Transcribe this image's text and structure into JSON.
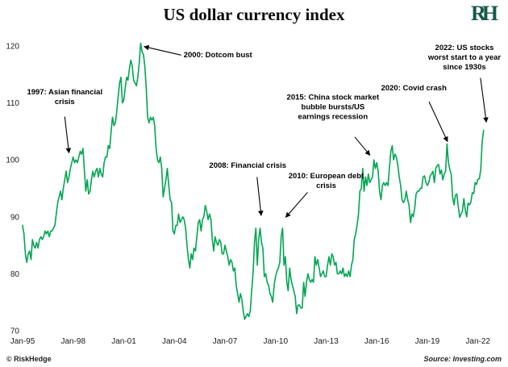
{
  "header": {
    "title": "US dollar currency index",
    "logo": "RH"
  },
  "footer": {
    "left": "© RiskHedge",
    "right": "Source: Investing.com"
  },
  "chart_data": {
    "type": "line",
    "title": "US dollar currency index",
    "series_name": "US dollar currency index (DXY)",
    "line_color": "#00a651",
    "background": "#ffffff",
    "grid": false,
    "legend": "none",
    "xlabel": "",
    "ylabel": "",
    "ylim": [
      70,
      120
    ],
    "yticks": [
      70,
      80,
      90,
      100,
      110,
      120
    ],
    "x_range": [
      1995.0,
      2023.4
    ],
    "xticks": [
      {
        "label": "Jan-95",
        "year": 1995
      },
      {
        "label": "Jan-98",
        "year": 1998
      },
      {
        "label": "Jan-01",
        "year": 2001
      },
      {
        "label": "Jan-04",
        "year": 2004
      },
      {
        "label": "Jan-07",
        "year": 2007
      },
      {
        "label": "Jan-10",
        "year": 2010
      },
      {
        "label": "Jan-13",
        "year": 2013
      },
      {
        "label": "Jan-16",
        "year": 2016
      },
      {
        "label": "Jan-19",
        "year": 2019
      },
      {
        "label": "Jan-22",
        "year": 2022
      }
    ],
    "start_year": 1995,
    "interval_months": 1,
    "values": [
      88.5,
      87.0,
      83.5,
      82.0,
      83.5,
      84.0,
      82.5,
      86.0,
      85.0,
      84.5,
      85.5,
      84.5,
      86.0,
      86.5,
      86.0,
      86.5,
      87.5,
      87.0,
      87.5,
      86.5,
      87.5,
      87.5,
      88.0,
      88.5,
      90.5,
      92.5,
      93.5,
      94.5,
      93.0,
      95.0,
      96.5,
      98.0,
      96.0,
      97.0,
      98.5,
      99.5,
      100.5,
      99.5,
      100.0,
      99.5,
      100.5,
      101.5,
      101.0,
      102.0,
      98.0,
      94.5,
      96.5,
      94.0,
      94.5,
      96.5,
      98.0,
      97.0,
      98.0,
      98.5,
      97.0,
      98.5,
      97.5,
      97.0,
      99.5,
      100.5,
      100.5,
      102.5,
      102.0,
      105.0,
      107.5,
      106.0,
      106.5,
      108.5,
      111.0,
      113.5,
      114.5,
      110.0,
      110.5,
      112.5,
      114.5,
      114.0,
      116.0,
      117.5,
      116.5,
      114.0,
      113.5,
      113.0,
      114.5,
      117.0,
      120.5,
      119.0,
      118.5,
      116.5,
      112.5,
      107.5,
      106.5,
      107.5,
      107.0,
      107.5,
      106.0,
      102.0,
      100.0,
      99.5,
      100.5,
      98.5,
      93.5,
      95.0,
      96.5,
      98.5,
      95.5,
      93.0,
      92.5,
      87.5,
      87.0,
      88.5,
      88.5,
      90.5,
      89.0,
      89.5,
      90.0,
      89.5,
      88.0,
      85.0,
      82.5,
      81.0,
      83.5,
      82.5,
      84.5,
      84.0,
      86.5,
      89.0,
      89.5,
      87.5,
      89.5,
      90.0,
      92.0,
      91.0,
      89.5,
      90.5,
      89.5,
      86.0,
      84.0,
      86.5,
      85.5,
      85.0,
      86.0,
      85.5,
      83.5,
      83.5,
      85.0,
      84.0,
      83.0,
      81.5,
      82.5,
      82.0,
      80.5,
      81.0,
      78.0,
      76.5,
      75.0,
      76.5,
      75.5,
      73.5,
      72.0,
      72.5,
      73.0,
      72.5,
      73.5,
      77.0,
      80.0,
      85.5,
      88.0,
      81.5,
      86.0,
      88.0,
      85.5,
      84.5,
      79.5,
      80.0,
      78.5,
      78.0,
      76.5,
      76.0,
      75.0,
      78.0,
      79.5,
      80.5,
      81.0,
      82.0,
      86.5,
      88.0,
      81.5,
      83.0,
      78.5,
      77.0,
      81.0,
      79.0,
      78.0,
      77.0,
      76.0,
      73.0,
      74.5,
      74.5,
      74.0,
      74.0,
      78.5,
      76.0,
      78.5,
      80.0,
      79.0,
      78.5,
      79.0,
      78.5,
      83.0,
      81.5,
      82.5,
      81.0,
      79.5,
      80.0,
      80.5,
      79.5,
      79.5,
      81.5,
      83.0,
      81.5,
      83.5,
      83.0,
      81.5,
      82.0,
      80.0,
      80.0,
      80.5,
      80.0,
      81.0,
      79.5,
      80.0,
      79.5,
      80.5,
      79.5,
      81.5,
      82.5,
      86.0,
      87.0,
      88.5,
      90.5,
      94.5,
      95.0,
      98.5,
      94.5,
      97.0,
      95.5,
      97.5,
      96.0,
      96.5,
      97.0,
      100.0,
      98.5,
      99.5,
      98.0,
      94.5,
      93.0,
      95.5,
      96.0,
      95.5,
      96.0,
      95.5,
      98.5,
      101.5,
      102.5,
      100.0,
      101.0,
      100.5,
      99.0,
      97.0,
      95.5,
      93.0,
      92.5,
      93.0,
      94.5,
      93.0,
      92.0,
      89.0,
      90.5,
      90.0,
      91.5,
      94.0,
      94.5,
      94.5,
      95.0,
      95.0,
      97.0,
      97.2,
      96.0,
      95.5,
      96.0,
      97.2,
      97.5,
      98.0,
      96.0,
      98.5,
      99.0,
      99.2,
      97.5,
      98.2,
      96.5,
      97.5,
      98.0,
      102.8,
      99.5,
      98.3,
      97.4,
      93.5,
      92.1,
      93.8,
      94.0,
      91.8,
      89.9,
      90.5,
      91.0,
      93.2,
      91.2,
      90.0,
      92.4,
      92.1,
      92.6,
      94.2,
      94.1,
      96.0,
      95.7,
      96.6,
      96.7,
      98.3,
      103.0,
      105.2
    ],
    "annotations": [
      {
        "name": "asian-financial-crisis",
        "lines": [
          "1997: Asian financial",
          "crisis"
        ],
        "anchor": "middle",
        "text_at": {
          "year": 1997.5,
          "value": 111.5
        },
        "arrow": {
          "from": {
            "year": 1997.5,
            "value": 107.6
          },
          "to": {
            "year": 1997.75,
            "value": 101.2
          }
        }
      },
      {
        "name": "dotcom-bust",
        "lines": [
          "2000: Dotcom bust"
        ],
        "anchor": "start",
        "text_at": {
          "year": 2004.55,
          "value": 118.0
        },
        "arrow": {
          "from": {
            "year": 2004.4,
            "value": 118.4
          },
          "to": {
            "year": 2002.2,
            "value": 119.9
          }
        }
      },
      {
        "name": "financial-crisis-2008",
        "lines": [
          "2008: Financial crisis"
        ],
        "anchor": "middle",
        "text_at": {
          "year": 2008.35,
          "value": 98.6
        },
        "arrow": {
          "from": {
            "year": 2008.9,
            "value": 97.0
          },
          "to": {
            "year": 2009.15,
            "value": 90.2
          }
        }
      },
      {
        "name": "european-debt-crisis",
        "lines": [
          "2010: European debt",
          "crisis"
        ],
        "anchor": "middle",
        "text_at": {
          "year": 2013.0,
          "value": 96.8
        },
        "arrow": {
          "from": {
            "year": 2011.9,
            "value": 94.3
          },
          "to": {
            "year": 2010.6,
            "value": 89.9
          }
        }
      },
      {
        "name": "china-bubble-2015",
        "lines": [
          "2015: China stock market",
          "bubble bursts/US",
          "earnings recession"
        ],
        "anchor": "middle",
        "text_at": {
          "year": 2013.4,
          "value": 110.6
        },
        "arrow": {
          "from": {
            "year": 2014.7,
            "value": 104.0
          },
          "to": {
            "year": 2015.6,
            "value": 100.8
          }
        }
      },
      {
        "name": "covid-crash",
        "lines": [
          "2020: Covid crash"
        ],
        "anchor": "middle",
        "text_at": {
          "year": 2018.2,
          "value": 112.2
        },
        "arrow": {
          "from": {
            "year": 2019.1,
            "value": 110.2
          },
          "to": {
            "year": 2020.2,
            "value": 103.2
          }
        }
      },
      {
        "name": "us-stocks-2022",
        "lines": [
          "2022: US stocks",
          "worst start to a year",
          "since 1930s"
        ],
        "anchor": "middle",
        "text_at": {
          "year": 2021.2,
          "value": 119.3
        },
        "arrow": {
          "from": {
            "year": 2022.15,
            "value": 114.4
          },
          "to": {
            "year": 2022.5,
            "value": 106.6
          }
        }
      }
    ]
  }
}
